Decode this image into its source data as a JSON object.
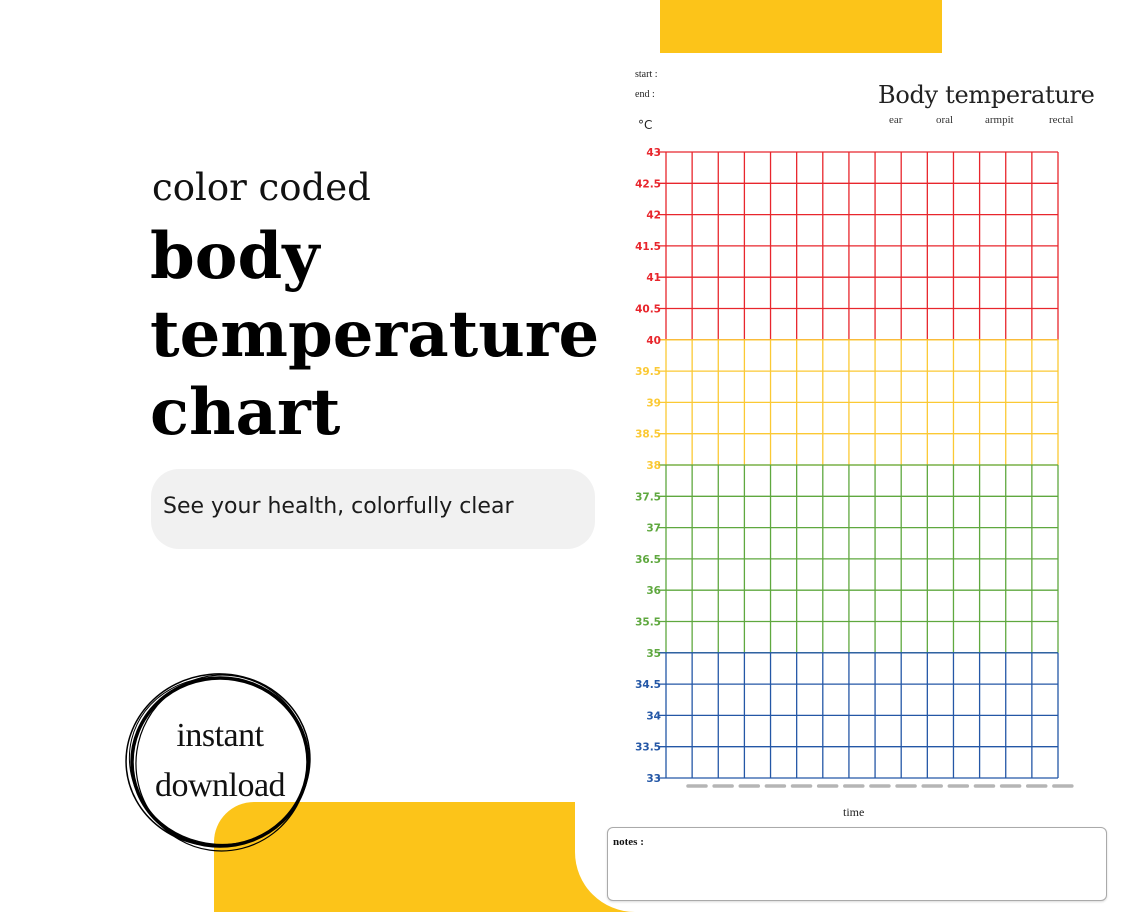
{
  "promo": {
    "subtitle": "color coded",
    "headline_lines": [
      "body",
      "temperature",
      "chart"
    ],
    "tagline": "See your health, colorfully clear",
    "badge_lines": [
      "instant",
      "download"
    ]
  },
  "sheet": {
    "start_label": "start  :",
    "end_label": "end   :",
    "title": "Body temperature",
    "methods": [
      "ear",
      "oral",
      "armpit",
      "rectal"
    ],
    "unit": "°C",
    "time_label": "time",
    "notes_label": "notes :"
  },
  "colors": {
    "accent_yellow": "#fcc419",
    "fever_red": "#e8262d",
    "high_yellow": "#fbc934",
    "normal_green": "#5fa83f",
    "low_blue": "#2457a6"
  },
  "chart_data": {
    "type": "table",
    "ylabel": "°C",
    "xlabel": "time",
    "ylim": [
      33,
      43
    ],
    "y_ticks": [
      "43",
      "42.5",
      "42",
      "41.5",
      "41",
      "40.5",
      "40",
      "39.5",
      "39",
      "38.5",
      "38",
      "37.5",
      "37",
      "36.5",
      "36",
      "35.5",
      "35",
      "34.5",
      "34",
      "33.5",
      "33"
    ],
    "columns": 15,
    "zones": [
      {
        "from": 40,
        "to": 43,
        "color": "#e8262d"
      },
      {
        "from": 38,
        "to": 40,
        "color": "#fbc934"
      },
      {
        "from": 35,
        "to": 38,
        "color": "#5fa83f"
      },
      {
        "from": 33,
        "to": 35,
        "color": "#2457a6"
      }
    ]
  }
}
